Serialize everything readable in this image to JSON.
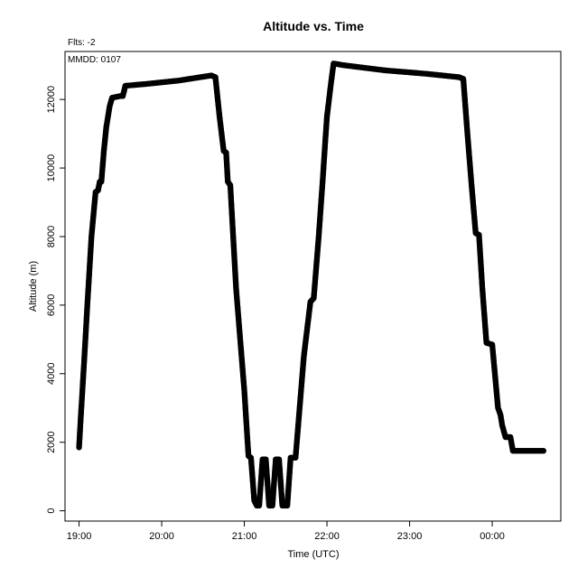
{
  "chart_data": {
    "type": "scatter",
    "title": "Altitude  vs. Time",
    "flts_label": "Flts: -2",
    "mmdd_label": "MMDD: 0107",
    "xlabel": "Time (UTC)",
    "ylabel": "Altitude (m)",
    "x_unit": "hours UTC (values past 24 wrap to next day)",
    "xlim": [
      18.83,
      24.83
    ],
    "ylim": [
      -300,
      13400
    ],
    "x_ticks": [
      19,
      20,
      21,
      22,
      23,
      24
    ],
    "x_tick_labels": [
      "19:00",
      "20:00",
      "21:00",
      "22:00",
      "23:00",
      "00:00"
    ],
    "y_ticks": [
      0,
      2000,
      4000,
      6000,
      8000,
      10000,
      12000
    ],
    "y_tick_labels": [
      "0",
      "2000",
      "4000",
      "6000",
      "8000",
      "10000",
      "12000"
    ],
    "grid": false,
    "marker_color": "#000000",
    "series": [
      {
        "points": [
          [
            19.0,
            1850
          ],
          [
            19.02,
            2700
          ],
          [
            19.04,
            3500
          ],
          [
            19.06,
            4300
          ],
          [
            19.1,
            6000
          ],
          [
            19.15,
            8000
          ],
          [
            19.2,
            9300
          ],
          [
            19.23,
            9350
          ],
          [
            19.25,
            9600
          ],
          [
            19.27,
            9600
          ],
          [
            19.3,
            10500
          ],
          [
            19.33,
            11200
          ],
          [
            19.37,
            11800
          ],
          [
            19.4,
            12050
          ],
          [
            19.5,
            12100
          ],
          [
            19.53,
            12100
          ],
          [
            19.56,
            12400
          ],
          [
            19.8,
            12450
          ],
          [
            20.2,
            12550
          ],
          [
            20.6,
            12700
          ],
          [
            20.65,
            12650
          ],
          [
            20.7,
            11500
          ],
          [
            20.75,
            10500
          ],
          [
            20.78,
            10450
          ],
          [
            20.8,
            9600
          ],
          [
            20.83,
            9500
          ],
          [
            20.9,
            6500
          ],
          [
            21.0,
            3500
          ],
          [
            21.05,
            1600
          ],
          [
            21.08,
            1550
          ],
          [
            21.12,
            300
          ],
          [
            21.15,
            150
          ],
          [
            21.18,
            150
          ],
          [
            21.22,
            1500
          ],
          [
            21.26,
            1500
          ],
          [
            21.3,
            150
          ],
          [
            21.34,
            150
          ],
          [
            21.38,
            1500
          ],
          [
            21.42,
            1500
          ],
          [
            21.46,
            150
          ],
          [
            21.52,
            150
          ],
          [
            21.56,
            1550
          ],
          [
            21.62,
            1550
          ],
          [
            21.72,
            4500
          ],
          [
            21.8,
            6100
          ],
          [
            21.84,
            6200
          ],
          [
            21.9,
            8000
          ],
          [
            21.95,
            9700
          ],
          [
            21.98,
            10800
          ],
          [
            22.0,
            11500
          ],
          [
            22.05,
            12500
          ],
          [
            22.08,
            13050
          ],
          [
            22.2,
            13000
          ],
          [
            22.7,
            12850
          ],
          [
            23.2,
            12750
          ],
          [
            23.6,
            12650
          ],
          [
            23.65,
            12600
          ],
          [
            23.7,
            11000
          ],
          [
            23.75,
            9500
          ],
          [
            23.8,
            8100
          ],
          [
            23.84,
            8050
          ],
          [
            23.88,
            6500
          ],
          [
            23.93,
            4900
          ],
          [
            24.0,
            4850
          ],
          [
            24.07,
            3000
          ],
          [
            24.1,
            2800
          ],
          [
            24.12,
            2500
          ],
          [
            24.16,
            2150
          ],
          [
            24.22,
            2150
          ],
          [
            24.25,
            1750
          ],
          [
            24.5,
            1750
          ],
          [
            24.62,
            1750
          ]
        ]
      }
    ]
  }
}
